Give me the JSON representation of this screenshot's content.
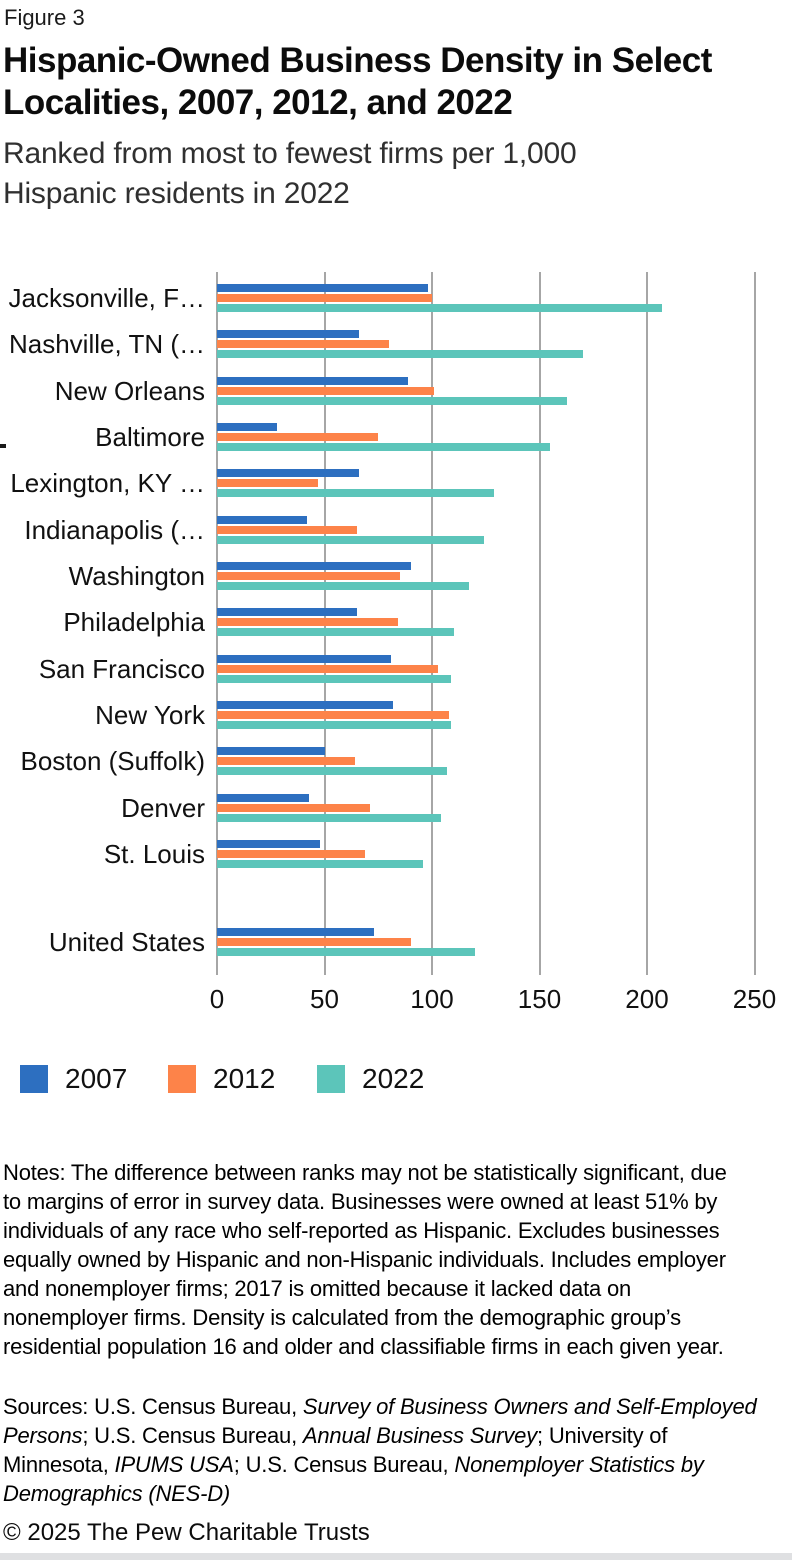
{
  "figure_label": "Figure 3",
  "title_text": "Hispanic-Owned Business Density in Select\nLocalities, 2007, 2012, and 2022",
  "subtitle_text": "Ranked from most to fewest firms per 1,000\nHispanic residents in 2022",
  "chart_data": {
    "type": "bar",
    "orientation": "horizontal",
    "title": "Hispanic-Owned Business Density in Select Localities, 2007, 2012, and 2022",
    "subtitle": "Ranked from most to fewest firms per 1,000 Hispanic residents in 2022",
    "xlabel": "",
    "ylabel": "",
    "xlim": [
      0,
      250
    ],
    "xticks": [
      0,
      50,
      100,
      150,
      200,
      250
    ],
    "grid": true,
    "legend_position": "bottom",
    "categories": [
      "Jacksonville, F…",
      "Nashville, TN (…",
      "New Orleans",
      "Baltimore",
      "Lexington, KY …",
      "Indianapolis (…",
      "Washington",
      "Philadelphia",
      "San Francisco",
      "New York",
      "Boston (Suffolk)",
      "Denver",
      "St. Louis",
      "United States"
    ],
    "separated_last_category": "United States",
    "series": [
      {
        "name": "2007",
        "color": "#2D6FC0",
        "values": [
          98,
          66,
          89,
          28,
          66,
          42,
          90,
          65,
          81,
          82,
          50,
          43,
          48,
          73
        ]
      },
      {
        "name": "2012",
        "color": "#FD8349",
        "values": [
          100,
          80,
          101,
          75,
          47,
          65,
          85,
          84,
          103,
          108,
          64,
          71,
          69,
          90
        ]
      },
      {
        "name": "2022",
        "color": "#5CC5BA",
        "values": [
          207,
          170,
          163,
          155,
          129,
          124,
          117,
          110,
          109,
          109,
          107,
          104,
          96,
          120
        ]
      }
    ]
  },
  "notes_text": "Notes: The difference between ranks may not be statistically significant, due\nto margins of error in survey data. Businesses were owned at least 51% by\nindividuals of any race who self-reported as Hispanic. Excludes businesses\nequally owned by Hispanic and non-Hispanic individuals. Includes employer\nand nonemployer firms; 2017 is omitted because it lacked data on\nnonemployer firms. Density is calculated from the demographic group’s\nresidential population 16 and older and classifiable firms in each given year.",
  "sources_lines": [
    [
      {
        "t": "Sources: U.S. Census Bureau, ",
        "i": false
      },
      {
        "t": "Survey of Business Owners and Self-Employed",
        "i": true
      }
    ],
    [
      {
        "t": "Persons",
        "i": true
      },
      {
        "t": "; U.S. Census Bureau, ",
        "i": false
      },
      {
        "t": "Annual Business Survey",
        "i": true
      },
      {
        "t": "; University of",
        "i": false
      }
    ],
    [
      {
        "t": "Minnesota, ",
        "i": false
      },
      {
        "t": "IPUMS USA",
        "i": true
      },
      {
        "t": "; U.S. Census Bureau, ",
        "i": false
      },
      {
        "t": "Nonemployer Statistics by",
        "i": true
      }
    ],
    [
      {
        "t": "Demographics (NES-D)",
        "i": true
      }
    ]
  ],
  "copyright": "© 2025 The Pew Charitable Trusts"
}
